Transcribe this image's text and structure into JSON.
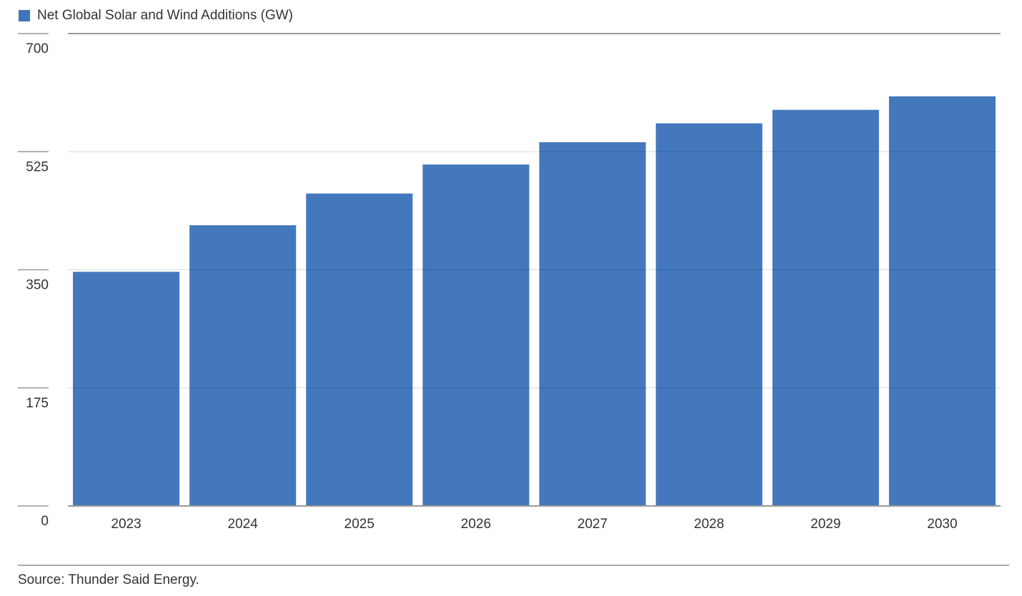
{
  "chart_data": {
    "type": "bar",
    "legend": "Net Global Solar and Wind Additions (GW)",
    "source": "Source: Thunder Said Energy.",
    "categories": [
      "2023",
      "2024",
      "2025",
      "2026",
      "2027",
      "2028",
      "2029",
      "2030"
    ],
    "values": [
      347,
      416,
      463,
      506,
      539,
      567,
      587,
      607
    ],
    "color": "#3f75bc",
    "ylim": [
      0,
      700
    ],
    "yticks": [
      0,
      175,
      350,
      525,
      700
    ],
    "grid": true
  }
}
